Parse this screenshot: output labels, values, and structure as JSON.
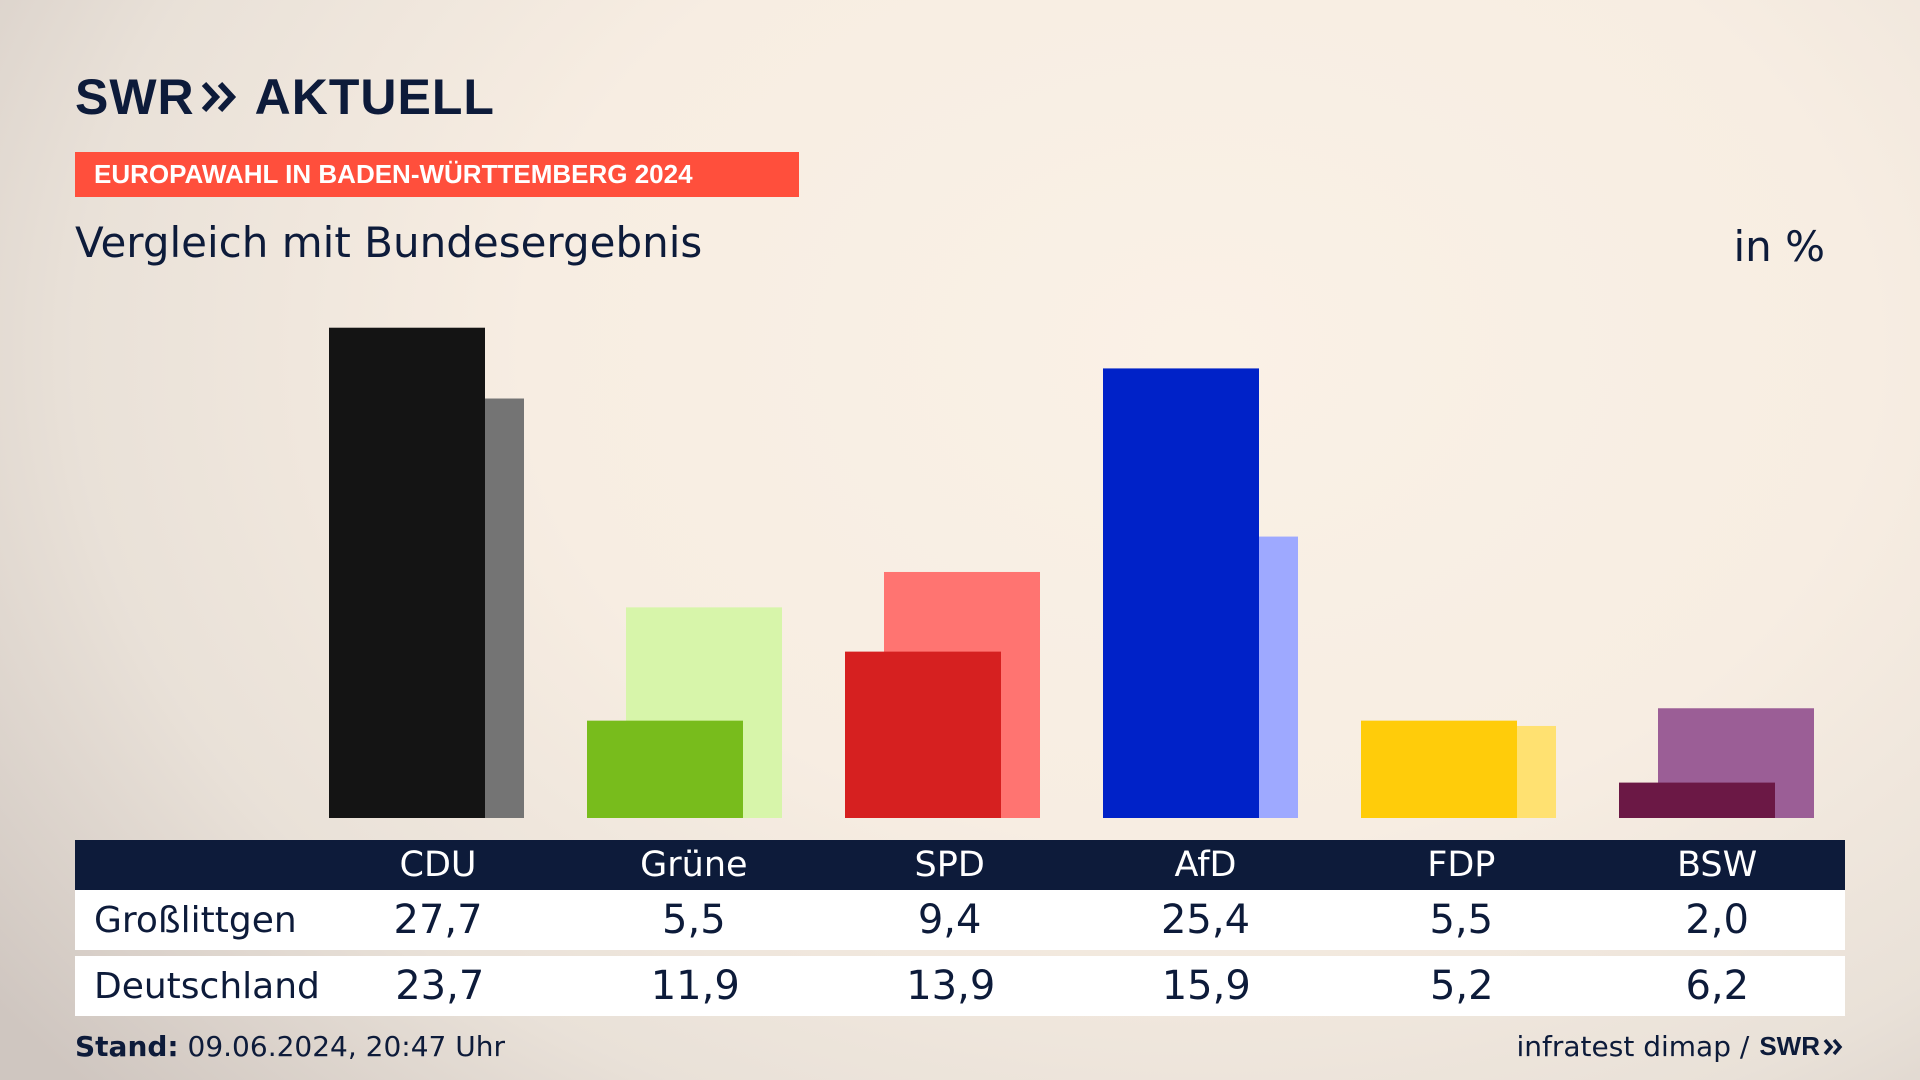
{
  "header": {
    "logo_left": "SWR",
    "logo_right": "AKTUELL",
    "banner": "EUROPAWAHL IN BADEN-WÜRTTEMBERG 2024",
    "subtitle": "Vergleich mit Bundesergebnis",
    "unit": "in %"
  },
  "chart_data": {
    "type": "bar",
    "categories": [
      "CDU",
      "Grüne",
      "SPD",
      "AfD",
      "FDP",
      "BSW"
    ],
    "series": [
      {
        "name": "Großlittgen",
        "values": [
          27.7,
          5.5,
          9.4,
          25.4,
          5.5,
          2.0
        ],
        "labels": [
          "27,7",
          "5,5",
          "9,4",
          "25,4",
          "5,5",
          "2,0"
        ]
      },
      {
        "name": "Deutschland",
        "values": [
          23.7,
          11.9,
          13.9,
          15.9,
          5.2,
          6.2
        ],
        "labels": [
          "23,7",
          "11,9",
          "13,9",
          "15,9",
          "5,2",
          "6,2"
        ]
      }
    ],
    "colors": {
      "primary": [
        "#141414",
        "#78bc1c",
        "#d62020",
        "#0022c8",
        "#ffcc0a",
        "#6b1845"
      ],
      "secondary": [
        "#747474",
        "#d7f5aa",
        "#ff7471",
        "#9ea9ff",
        "#ffe171",
        "#9b5e96"
      ]
    },
    "ylim": [
      0,
      28
    ]
  },
  "footer": {
    "stand_label": "Stand:",
    "stand_value": "09.06.2024, 20:47 Uhr",
    "source": "infratest dimap /",
    "source_logo": "SWR"
  }
}
